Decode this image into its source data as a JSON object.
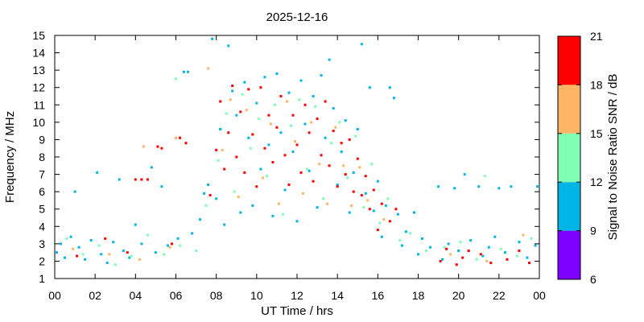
{
  "chart_data": {
    "type": "scatter",
    "title": "2025-12-16",
    "xlabel": "UT Time / hrs",
    "ylabel": "Frequency / MHz",
    "xlim": [
      0,
      24
    ],
    "ylim": [
      1,
      15
    ],
    "x_tick_labels": [
      "00",
      "02",
      "04",
      "06",
      "08",
      "10",
      "12",
      "14",
      "16",
      "18",
      "20",
      "22",
      "00"
    ],
    "y_tick_labels": [
      "1",
      "2",
      "3",
      "4",
      "5",
      "6",
      "7",
      "8",
      "9",
      "10",
      "11",
      "12",
      "13",
      "14",
      "15"
    ],
    "grid": false,
    "colorbar": {
      "label": "Signal to Noise Ratio SNR / dB",
      "ticks": [
        "6",
        "9",
        "12",
        "15",
        "18",
        "21"
      ],
      "bins": [
        {
          "range": [
            6,
            9
          ],
          "color": "#8000ff"
        },
        {
          "range": [
            9,
            12
          ],
          "color": "#00b4e6"
        },
        {
          "range": [
            12,
            15
          ],
          "color": "#80ffb4"
        },
        {
          "range": [
            15,
            18
          ],
          "color": "#ffb466"
        },
        {
          "range": [
            18,
            21
          ],
          "color": "#ff0000"
        }
      ]
    },
    "series": [
      {
        "snr_bin": "9-12",
        "points": [
          [
            0.1,
            2.5
          ],
          [
            0.3,
            3.0
          ],
          [
            0.5,
            2.2
          ],
          [
            0.8,
            3.4
          ],
          [
            1.0,
            6.0
          ],
          [
            1.2,
            2.8
          ],
          [
            1.5,
            2.1
          ],
          [
            1.8,
            3.2
          ],
          [
            2.1,
            7.1
          ],
          [
            2.3,
            2.4
          ],
          [
            2.6,
            1.9
          ],
          [
            2.9,
            3.1
          ],
          [
            3.2,
            6.7
          ],
          [
            3.4,
            2.6
          ],
          [
            3.7,
            2.2
          ],
          [
            4.0,
            4.1
          ],
          [
            4.3,
            3.0
          ],
          [
            4.8,
            7.4
          ],
          [
            5.0,
            2.5
          ],
          [
            5.3,
            6.3
          ],
          [
            5.6,
            2.9
          ],
          [
            6.1,
            3.3
          ],
          [
            6.4,
            12.9
          ],
          [
            6.6,
            12.9
          ],
          [
            6.8,
            3.6
          ],
          [
            7.2,
            4.4
          ],
          [
            7.4,
            5.9
          ],
          [
            7.6,
            6.4
          ],
          [
            7.8,
            14.8
          ],
          [
            8.0,
            5.6
          ],
          [
            8.2,
            9.6
          ],
          [
            8.4,
            4.1
          ],
          [
            8.6,
            14.4
          ],
          [
            8.8,
            11.8
          ],
          [
            9.0,
            10.4
          ],
          [
            9.2,
            4.8
          ],
          [
            9.4,
            12.3
          ],
          [
            9.6,
            9.1
          ],
          [
            9.8,
            5.2
          ],
          [
            10.0,
            11.1
          ],
          [
            10.2,
            7.3
          ],
          [
            10.4,
            12.6
          ],
          [
            10.6,
            8.7
          ],
          [
            10.8,
            4.6
          ],
          [
            11.0,
            12.8
          ],
          [
            11.2,
            9.4
          ],
          [
            11.4,
            6.1
          ],
          [
            11.6,
            11.7
          ],
          [
            11.8,
            8.3
          ],
          [
            12.0,
            4.3
          ],
          [
            12.2,
            12.4
          ],
          [
            12.4,
            9.9
          ],
          [
            12.6,
            7.2
          ],
          [
            12.8,
            11.5
          ],
          [
            13.0,
            5.1
          ],
          [
            13.2,
            12.7
          ],
          [
            13.4,
            9.1
          ],
          [
            13.6,
            13.6
          ],
          [
            13.8,
            10.8
          ],
          [
            14.0,
            6.4
          ],
          [
            14.2,
            8.3
          ],
          [
            14.4,
            10.1
          ],
          [
            14.6,
            4.8
          ],
          [
            14.8,
            7.1
          ],
          [
            15.0,
            9.6
          ],
          [
            15.2,
            14.5
          ],
          [
            15.4,
            5.9
          ],
          [
            15.6,
            12.0
          ],
          [
            15.8,
            4.9
          ],
          [
            16.0,
            6.6
          ],
          [
            16.2,
            3.4
          ],
          [
            16.4,
            5.2
          ],
          [
            16.6,
            12.0
          ],
          [
            16.8,
            11.4
          ],
          [
            17.0,
            4.7
          ],
          [
            17.2,
            2.9
          ],
          [
            17.4,
            3.7
          ],
          [
            17.8,
            4.8
          ],
          [
            18.0,
            2.4
          ],
          [
            18.2,
            3.3
          ],
          [
            18.6,
            2.8
          ],
          [
            19.0,
            6.3
          ],
          [
            19.2,
            2.1
          ],
          [
            19.5,
            3.0
          ],
          [
            19.8,
            6.2
          ],
          [
            20.0,
            2.6
          ],
          [
            20.3,
            7.0
          ],
          [
            20.6,
            3.2
          ],
          [
            21.0,
            6.3
          ],
          [
            21.2,
            2.3
          ],
          [
            21.5,
            2.8
          ],
          [
            21.8,
            3.4
          ],
          [
            22.0,
            6.2
          ],
          [
            22.3,
            2.5
          ],
          [
            22.6,
            6.3
          ],
          [
            23.0,
            3.1
          ],
          [
            23.4,
            2.2
          ],
          [
            23.8,
            2.9
          ],
          [
            23.9,
            6.3
          ]
        ]
      },
      {
        "snr_bin": "12-15",
        "points": [
          [
            0.6,
            3.3
          ],
          [
            1.4,
            2.4
          ],
          [
            2.2,
            2.9
          ],
          [
            3.0,
            1.8
          ],
          [
            3.8,
            2.3
          ],
          [
            4.6,
            3.5
          ],
          [
            5.4,
            2.4
          ],
          [
            6.0,
            12.5
          ],
          [
            6.2,
            2.9
          ],
          [
            7.0,
            2.6
          ],
          [
            7.5,
            5.2
          ],
          [
            8.1,
            7.8
          ],
          [
            8.5,
            10.5
          ],
          [
            8.9,
            6.0
          ],
          [
            9.3,
            11.6
          ],
          [
            9.7,
            8.5
          ],
          [
            10.1,
            10.2
          ],
          [
            10.5,
            6.9
          ],
          [
            10.9,
            11.0
          ],
          [
            11.3,
            4.7
          ],
          [
            11.7,
            9.8
          ],
          [
            12.1,
            11.3
          ],
          [
            12.5,
            7.3
          ],
          [
            12.9,
            10.9
          ],
          [
            13.3,
            5.6
          ],
          [
            13.7,
            8.8
          ],
          [
            14.1,
            10.0
          ],
          [
            14.5,
            6.8
          ],
          [
            14.9,
            9.2
          ],
          [
            15.3,
            5.1
          ],
          [
            15.7,
            7.6
          ],
          [
            16.1,
            4.2
          ],
          [
            16.5,
            5.6
          ],
          [
            17.1,
            3.2
          ],
          [
            17.6,
            3.6
          ],
          [
            18.4,
            2.6
          ],
          [
            19.3,
            2.8
          ],
          [
            20.1,
            3.1
          ],
          [
            20.9,
            2.1
          ],
          [
            21.3,
            6.9
          ],
          [
            22.1,
            2.7
          ],
          [
            22.9,
            2.3
          ],
          [
            23.6,
            3.3
          ]
        ]
      },
      {
        "snr_bin": "15-18",
        "points": [
          [
            0.9,
            2.7
          ],
          [
            2.7,
            2.4
          ],
          [
            4.4,
            8.6
          ],
          [
            4.2,
            2.1
          ],
          [
            5.7,
            2.8
          ],
          [
            6.0,
            9.1
          ],
          [
            7.6,
            13.1
          ],
          [
            8.3,
            8.4
          ],
          [
            8.7,
            11.3
          ],
          [
            9.1,
            5.7
          ],
          [
            9.5,
            10.7
          ],
          [
            10.3,
            6.8
          ],
          [
            10.7,
            9.9
          ],
          [
            11.1,
            5.3
          ],
          [
            11.5,
            11.2
          ],
          [
            11.9,
            8.9
          ],
          [
            12.3,
            5.9
          ],
          [
            12.7,
            10.0
          ],
          [
            13.1,
            7.6
          ],
          [
            13.5,
            5.3
          ],
          [
            13.9,
            9.7
          ],
          [
            14.3,
            7.5
          ],
          [
            14.7,
            5.2
          ],
          [
            15.1,
            7.4
          ],
          [
            15.5,
            5.5
          ],
          [
            16.3,
            4.4
          ],
          [
            19.6,
            2.4
          ],
          [
            21.4,
            2.0
          ],
          [
            23.2,
            3.5
          ]
        ]
      },
      {
        "snr_bin": "18-21",
        "points": [
          [
            1.1,
            2.3
          ],
          [
            2.5,
            3.3
          ],
          [
            3.6,
            2.5
          ],
          [
            4.0,
            6.7
          ],
          [
            4.3,
            6.7
          ],
          [
            4.6,
            6.7
          ],
          [
            5.1,
            8.6
          ],
          [
            5.3,
            8.5
          ],
          [
            5.8,
            3.0
          ],
          [
            6.2,
            9.1
          ],
          [
            6.5,
            8.8
          ],
          [
            7.7,
            5.8
          ],
          [
            8.0,
            8.4
          ],
          [
            8.2,
            11.2
          ],
          [
            8.4,
            7.3
          ],
          [
            8.6,
            9.4
          ],
          [
            8.8,
            12.1
          ],
          [
            9.0,
            8.0
          ],
          [
            9.2,
            10.6
          ],
          [
            9.4,
            7.1
          ],
          [
            9.6,
            11.9
          ],
          [
            9.8,
            9.3
          ],
          [
            10.0,
            6.3
          ],
          [
            10.2,
            12.0
          ],
          [
            10.4,
            8.5
          ],
          [
            10.6,
            10.4
          ],
          [
            10.8,
            7.7
          ],
          [
            11.0,
            9.7
          ],
          [
            11.2,
            11.5
          ],
          [
            11.4,
            8.1
          ],
          [
            11.6,
            6.4
          ],
          [
            11.8,
            10.4
          ],
          [
            12.0,
            8.7
          ],
          [
            12.2,
            7.1
          ],
          [
            12.4,
            11.0
          ],
          [
            12.6,
            9.4
          ],
          [
            12.8,
            6.6
          ],
          [
            13.0,
            10.2
          ],
          [
            13.2,
            8.1
          ],
          [
            13.4,
            11.2
          ],
          [
            13.6,
            7.5
          ],
          [
            13.8,
            9.5
          ],
          [
            14.0,
            6.3
          ],
          [
            14.2,
            8.8
          ],
          [
            14.4,
            7.0
          ],
          [
            14.6,
            9.0
          ],
          [
            14.8,
            6.0
          ],
          [
            15.0,
            7.9
          ],
          [
            15.2,
            5.8
          ],
          [
            15.4,
            6.9
          ],
          [
            15.6,
            5.0
          ],
          [
            15.8,
            6.1
          ],
          [
            16.0,
            3.8
          ],
          [
            16.2,
            5.3
          ],
          [
            16.6,
            4.3
          ],
          [
            16.9,
            5.0
          ],
          [
            19.1,
            2.0
          ],
          [
            19.4,
            2.7
          ],
          [
            19.9,
            1.8
          ],
          [
            20.2,
            2.2
          ],
          [
            20.5,
            2.6
          ],
          [
            21.1,
            2.4
          ],
          [
            21.6,
            1.9
          ],
          [
            22.4,
            2.1
          ],
          [
            23.0,
            2.6
          ],
          [
            23.5,
            1.9
          ]
        ]
      }
    ]
  }
}
